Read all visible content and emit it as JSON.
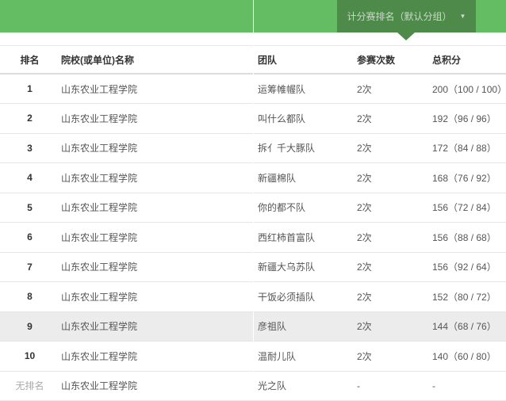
{
  "header": {
    "tab_label": "计分赛排名（默认分组）",
    "colors": {
      "bar": "#65bd63",
      "tab": "#4e8a4a"
    },
    "dropdown_icon": "caret-down-icon"
  },
  "table": {
    "columns": [
      "排名",
      "院校(或单位)名称",
      "团队",
      "参赛次数",
      "总积分"
    ],
    "rows": [
      {
        "rank": "1",
        "school": "山东农业工程学院",
        "team": "运筹帷幄队",
        "count": "2次",
        "score": "200（100 / 100）"
      },
      {
        "rank": "2",
        "school": "山东农业工程学院",
        "team": "叫什么都队",
        "count": "2次",
        "score": "192（96 / 96）"
      },
      {
        "rank": "3",
        "school": "山东农业工程学院",
        "team": "拆亻千大豚队",
        "count": "2次",
        "score": "172（84 / 88）"
      },
      {
        "rank": "4",
        "school": "山东农业工程学院",
        "team": "新疆棉队",
        "count": "2次",
        "score": "168（76 / 92）"
      },
      {
        "rank": "5",
        "school": "山东农业工程学院",
        "team": "你的都不队",
        "count": "2次",
        "score": "156（72 / 84）"
      },
      {
        "rank": "6",
        "school": "山东农业工程学院",
        "team": "西红柿首富队",
        "count": "2次",
        "score": "156（88 / 68）"
      },
      {
        "rank": "7",
        "school": "山东农业工程学院",
        "team": "新疆大乌苏队",
        "count": "2次",
        "score": "156（92 / 64）"
      },
      {
        "rank": "8",
        "school": "山东农业工程学院",
        "team": "干饭必须插队",
        "count": "2次",
        "score": "152（80 / 72）"
      },
      {
        "rank": "9",
        "school": "山东农业工程学院",
        "team": "彦祖队",
        "count": "2次",
        "score": "144（68 / 76）"
      },
      {
        "rank": "10",
        "school": "山东农业工程学院",
        "team": "温耐儿队",
        "count": "2次",
        "score": "140（60 / 80）"
      },
      {
        "rank": "无排名",
        "school": "山东农业工程学院",
        "team": "光之队",
        "count": "-",
        "score": "-"
      }
    ]
  }
}
